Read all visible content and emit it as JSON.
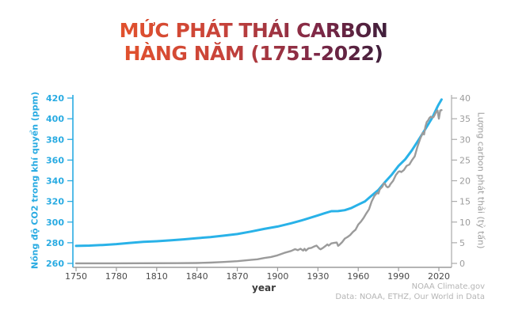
{
  "chart_data": {
    "type": "line",
    "title": "MỨC PHÁT THẢI CARBON HÀNG NĂM (1751-2022)",
    "title_line1": "MỨC PHÁT THẢI CARBON",
    "title_line2": "HÀNG NĂM (1751-2022)",
    "title_gradient": [
      "#E1512D",
      "#C8433A",
      "#7E2847",
      "#3F1F3B"
    ],
    "xlabel": "year",
    "x_range": [
      1750,
      2022
    ],
    "x_ticks": [
      1750,
      1780,
      1810,
      1840,
      1870,
      1900,
      1930,
      1960,
      1990,
      2020
    ],
    "x_tick_color": "#4a4a4a",
    "grid": "off",
    "legend": "none",
    "left_axis": {
      "label": "Nồng độ CO2 trong khí quyển (ppm)",
      "range": [
        260,
        420
      ],
      "ticks": [
        260,
        280,
        300,
        320,
        340,
        360,
        380,
        400,
        420
      ],
      "color": "#29abe2"
    },
    "right_axis": {
      "label": "Lượng carbon phát thải (tỷ tấn)",
      "range": [
        0,
        40
      ],
      "ticks": [
        0,
        5,
        10,
        15,
        20,
        25,
        30,
        35,
        40
      ],
      "color": "#9c9c9c"
    },
    "series": [
      {
        "id": "co2-concentration",
        "name": "Nồng độ CO2 trong khí quyển (ppm)",
        "axis": "left",
        "color": "#29b2e8",
        "width": 3,
        "points": [
          [
            1750,
            276.9
          ],
          [
            1760,
            277.2
          ],
          [
            1770,
            277.8
          ],
          [
            1780,
            278.7
          ],
          [
            1790,
            279.8
          ],
          [
            1800,
            280.8
          ],
          [
            1810,
            281.4
          ],
          [
            1820,
            282.3
          ],
          [
            1830,
            283.3
          ],
          [
            1840,
            284.4
          ],
          [
            1850,
            285.5
          ],
          [
            1860,
            286.9
          ],
          [
            1870,
            288.4
          ],
          [
            1880,
            290.8
          ],
          [
            1890,
            293.4
          ],
          [
            1900,
            295.7
          ],
          [
            1910,
            298.8
          ],
          [
            1920,
            302.4
          ],
          [
            1930,
            306.5
          ],
          [
            1935,
            308.5
          ],
          [
            1940,
            310.5
          ],
          [
            1945,
            310.6
          ],
          [
            1950,
            311.5
          ],
          [
            1955,
            313.7
          ],
          [
            1960,
            316.9
          ],
          [
            1965,
            320.0
          ],
          [
            1970,
            325.7
          ],
          [
            1975,
            331.1
          ],
          [
            1980,
            338.8
          ],
          [
            1985,
            346.0
          ],
          [
            1990,
            354.4
          ],
          [
            1995,
            360.8
          ],
          [
            2000,
            369.6
          ],
          [
            2005,
            379.8
          ],
          [
            2010,
            390.1
          ],
          [
            2015,
            400.8
          ],
          [
            2019,
            411.7
          ],
          [
            2020,
            414.2
          ],
          [
            2021,
            416.4
          ],
          [
            2022,
            418.6
          ]
        ]
      },
      {
        "id": "carbon-emissions",
        "name": "Lượng carbon phát thải (tỷ tấn)",
        "axis": "right",
        "color": "#9b9b9b",
        "width": 2.4,
        "points": [
          [
            1750,
            0.01
          ],
          [
            1775,
            0.02
          ],
          [
            1800,
            0.03
          ],
          [
            1825,
            0.06
          ],
          [
            1840,
            0.1
          ],
          [
            1850,
            0.2
          ],
          [
            1860,
            0.34
          ],
          [
            1870,
            0.53
          ],
          [
            1880,
            0.85
          ],
          [
            1885,
            1.0
          ],
          [
            1890,
            1.3
          ],
          [
            1895,
            1.55
          ],
          [
            1900,
            1.95
          ],
          [
            1905,
            2.55
          ],
          [
            1910,
            3.0
          ],
          [
            1913,
            3.45
          ],
          [
            1915,
            3.2
          ],
          [
            1917,
            3.55
          ],
          [
            1919,
            3.1
          ],
          [
            1920,
            3.55
          ],
          [
            1921,
            3.1
          ],
          [
            1923,
            3.65
          ],
          [
            1925,
            3.75
          ],
          [
            1927,
            4.05
          ],
          [
            1929,
            4.3
          ],
          [
            1931,
            3.6
          ],
          [
            1932,
            3.4
          ],
          [
            1934,
            3.8
          ],
          [
            1936,
            4.3
          ],
          [
            1937,
            4.6
          ],
          [
            1938,
            4.3
          ],
          [
            1940,
            4.85
          ],
          [
            1942,
            4.95
          ],
          [
            1944,
            5.05
          ],
          [
            1945,
            4.25
          ],
          [
            1946,
            4.5
          ],
          [
            1948,
            5.15
          ],
          [
            1950,
            6.0
          ],
          [
            1952,
            6.4
          ],
          [
            1954,
            6.85
          ],
          [
            1956,
            7.6
          ],
          [
            1958,
            8.15
          ],
          [
            1960,
            9.4
          ],
          [
            1962,
            10.1
          ],
          [
            1964,
            11.0
          ],
          [
            1966,
            12.1
          ],
          [
            1968,
            13.1
          ],
          [
            1970,
            15.0
          ],
          [
            1972,
            16.3
          ],
          [
            1974,
            17.1
          ],
          [
            1975,
            16.9
          ],
          [
            1976,
            17.9
          ],
          [
            1978,
            18.6
          ],
          [
            1979,
            19.4
          ],
          [
            1980,
            19.2
          ],
          [
            1981,
            18.6
          ],
          [
            1982,
            18.4
          ],
          [
            1983,
            18.6
          ],
          [
            1984,
            19.2
          ],
          [
            1986,
            20.0
          ],
          [
            1988,
            21.4
          ],
          [
            1990,
            22.2
          ],
          [
            1991,
            22.3
          ],
          [
            1992,
            22.1
          ],
          [
            1994,
            22.6
          ],
          [
            1996,
            23.6
          ],
          [
            1998,
            23.9
          ],
          [
            2000,
            25.0
          ],
          [
            2002,
            25.9
          ],
          [
            2004,
            28.2
          ],
          [
            2006,
            30.1
          ],
          [
            2008,
            31.6
          ],
          [
            2009,
            31.2
          ],
          [
            2010,
            33.1
          ],
          [
            2011,
            34.2
          ],
          [
            2012,
            34.6
          ],
          [
            2013,
            35.2
          ],
          [
            2014,
            35.5
          ],
          [
            2015,
            35.3
          ],
          [
            2016,
            35.4
          ],
          [
            2017,
            36.0
          ],
          [
            2018,
            36.7
          ],
          [
            2019,
            37.0
          ],
          [
            2020,
            35.0
          ],
          [
            2021,
            37.0
          ],
          [
            2022,
            37.1
          ]
        ]
      }
    ]
  },
  "footer": {
    "credit_line1": "NOAA Climate.gov",
    "credit_line2": "Data: NOAA, ETHZ, Our World in Data"
  }
}
